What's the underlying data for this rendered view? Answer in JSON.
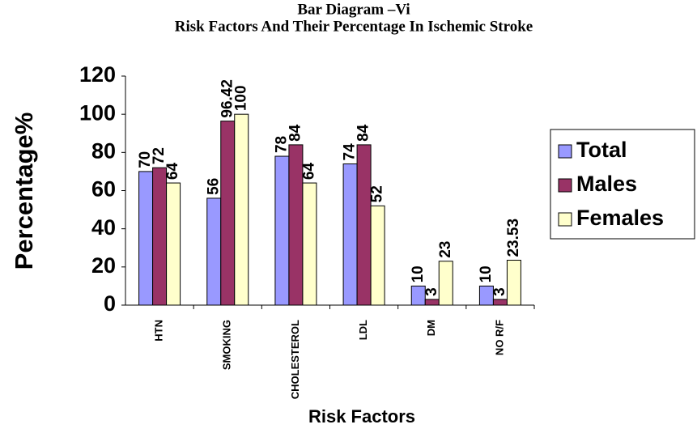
{
  "chart_data": {
    "type": "bar",
    "title": "Bar Diagram –Vi",
    "subtitle": "Risk Factors And Their Percentage In Ischemic Stroke",
    "y_label": "Percentage%",
    "x_label": "Risk Factors",
    "categories": [
      "HTN",
      "SMOKING",
      "CHOLESTEROL",
      "LDL",
      "DM",
      "NO R/F"
    ],
    "series": [
      {
        "name": "Total",
        "color": "#9999ff",
        "values": [
          70,
          56,
          78,
          74,
          10,
          10
        ]
      },
      {
        "name": "Males",
        "color": "#993366",
        "values": [
          72,
          96.42,
          84,
          84,
          3,
          3
        ]
      },
      {
        "name": "Females",
        "color": "#ffffcc",
        "values": [
          64,
          100,
          64,
          52,
          23,
          23.53
        ]
      }
    ],
    "ylim": [
      0,
      120
    ],
    "yticks": [
      0,
      20,
      40,
      60,
      80,
      100,
      120
    ],
    "grid": false,
    "legend": "right"
  }
}
